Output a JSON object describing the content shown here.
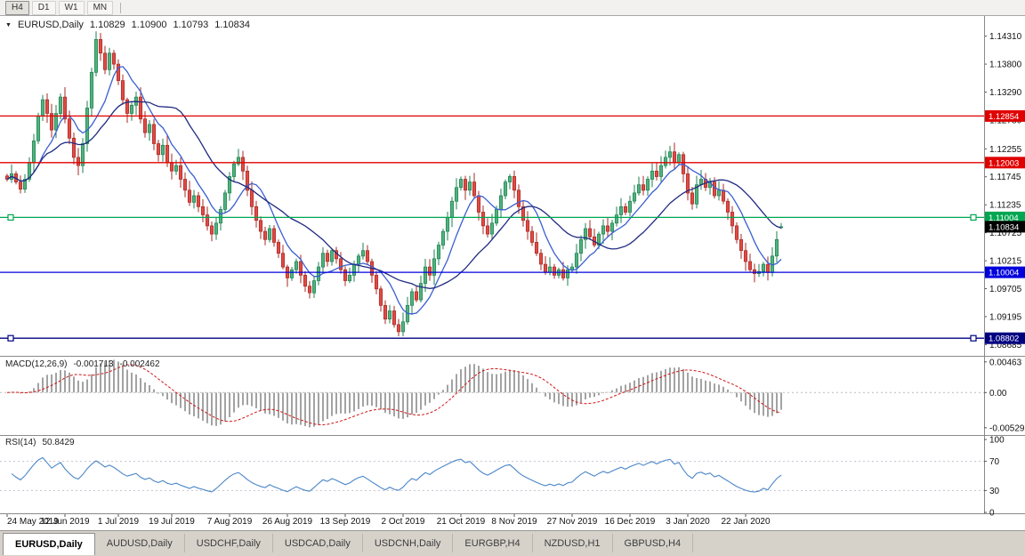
{
  "toolbar": {
    "buttons": [
      "H4",
      "D1",
      "W1",
      "MN"
    ],
    "active_button": "H4"
  },
  "chart_header": {
    "dropdown_icon": "▼",
    "symbol": "EURUSD,Daily",
    "open": "1.10829",
    "high": "1.10900",
    "low": "1.10793",
    "close": "1.10834"
  },
  "price_axis": {
    "ticks": [
      "1.14310",
      "1.13800",
      "1.13290",
      "1.12780",
      "1.12255",
      "1.11745",
      "1.11235",
      "1.10725",
      "1.10215",
      "1.09705",
      "1.09195",
      "1.08685"
    ]
  },
  "levels": [
    {
      "label": "1.12854",
      "price": 1.12854,
      "color": "#e00000",
      "handles": false
    },
    {
      "label": "1.12003",
      "price": 1.12003,
      "color": "#e00000",
      "handles": false
    },
    {
      "label": "1.11004",
      "price": 1.11004,
      "color": "#00a651",
      "handles": true
    },
    {
      "label": "1.10004",
      "price": 1.10004,
      "color": "#0000dd",
      "handles": false
    },
    {
      "label": "1.08802",
      "price": 1.08802,
      "color": "#000080",
      "handles": true
    }
  ],
  "current_price": {
    "label": "1.10834",
    "price": 1.10834,
    "badge_color": "#000000"
  },
  "macd_panel": {
    "title": "MACD(12,26,9)",
    "main_value": "-0.001713",
    "signal_value": "-0.002462",
    "axis": [
      {
        "text": "0.00463",
        "v": 0.00463
      },
      {
        "text": "0.00",
        "v": 0
      },
      {
        "text": "-0.005299",
        "v": -0.005299
      }
    ]
  },
  "rsi_panel": {
    "title": "RSI(14)",
    "value": "50.8429",
    "axis": [
      {
        "text": "100",
        "v": 100
      },
      {
        "text": "70",
        "v": 70
      },
      {
        "text": "30",
        "v": 30
      },
      {
        "text": "0",
        "v": 0
      }
    ],
    "level_lines": [
      70,
      30
    ]
  },
  "time_axis": {
    "labels": [
      "24 May 2019",
      "12 Jun 2019",
      "1 Jul 2019",
      "19 Jul 2019",
      "7 Aug 2019",
      "26 Aug 2019",
      "13 Sep 2019",
      "2 Oct 2019",
      "21 Oct 2019",
      "8 Nov 2019",
      "27 Nov 2019",
      "16 Dec 2019",
      "3 Jan 2020",
      "22 Jan 2020"
    ],
    "indices": [
      0,
      13,
      25,
      37,
      50,
      63,
      76,
      89,
      102,
      114,
      127,
      140,
      153,
      166
    ]
  },
  "bottom_tabs": {
    "active": "EURUSD,Daily",
    "tabs": [
      "EURUSD,Daily",
      "AUDUSD,Daily",
      "USDCHF,Daily",
      "USDCAD,Daily",
      "USDCNH,Daily",
      "EURGBP,H4",
      "NZDUSD,H1",
      "GBPUSD,H4"
    ]
  },
  "colors": {
    "candle_up": "#51b27e",
    "candle_up_border": "#1e8152",
    "candle_down": "#e04a45",
    "candle_down_border": "#a62b26",
    "ma_fast": "#3a5fd0",
    "ma_slow": "#202a80",
    "macd_hist": "#a3a3a3",
    "macd_signal": "#d01515",
    "rsi_line": "#4a86c8",
    "panel_border": "#8a8a8a"
  },
  "chart_data": {
    "type": "candlestick",
    "symbol": "EURUSD",
    "timeframe": "Daily",
    "title": "EURUSD,Daily",
    "current_ohlc": {
      "open": 1.10829,
      "high": 1.109,
      "low": 1.10793,
      "close": 1.10834
    },
    "ylim": [
      1.0848,
      1.1458
    ],
    "horizontal_levels": [
      1.12854,
      1.12003,
      1.11004,
      1.10004,
      1.08802
    ],
    "x_tick_labels": [
      "24 May 2019",
      "12 Jun 2019",
      "1 Jul 2019",
      "19 Jul 2019",
      "7 Aug 2019",
      "26 Aug 2019",
      "13 Sep 2019",
      "2 Oct 2019",
      "21 Oct 2019",
      "8 Nov 2019",
      "27 Nov 2019",
      "16 Dec 2019",
      "3 Jan 2020",
      "22 Jan 2020"
    ],
    "x_tick_candle_indices": [
      0,
      13,
      25,
      37,
      50,
      63,
      76,
      89,
      102,
      114,
      127,
      140,
      153,
      166
    ],
    "moving_averages": [
      {
        "period": 8
      },
      {
        "period": 21
      }
    ],
    "indicators": {
      "macd": {
        "fast": 12,
        "slow": 26,
        "signal": 9,
        "current_main": -0.001713,
        "current_signal": -0.002462,
        "scale_max": 0.00463,
        "scale_min": -0.005299
      },
      "rsi": {
        "period": 14,
        "current": 50.8429,
        "levels": [
          70,
          30
        ],
        "range": [
          0,
          100
        ]
      }
    },
    "closes": [
      1.117,
      1.118,
      1.1165,
      1.1152,
      1.117,
      1.12,
      1.124,
      1.1285,
      1.1315,
      1.129,
      1.126,
      1.129,
      1.132,
      1.128,
      1.1245,
      1.121,
      1.1195,
      1.1235,
      1.13,
      1.1365,
      1.1425,
      1.14,
      1.137,
      1.14,
      1.138,
      1.135,
      1.1315,
      1.129,
      1.1305,
      1.132,
      1.128,
      1.1255,
      1.127,
      1.1235,
      1.1215,
      1.1232,
      1.12,
      1.1185,
      1.1195,
      1.117,
      1.115,
      1.1128,
      1.114,
      1.112,
      1.1105,
      1.1085,
      1.107,
      1.109,
      1.1115,
      1.1145,
      1.1175,
      1.1198,
      1.121,
      1.1185,
      1.115,
      1.112,
      1.1095,
      1.1075,
      1.106,
      1.108,
      1.1055,
      1.1035,
      1.101,
      1.099,
      1.1005,
      1.102,
      1.0995,
      1.0975,
      1.0963,
      1.0985,
      1.101,
      1.1035,
      1.102,
      1.104,
      1.1025,
      1.1005,
      1.0985,
      1.0995,
      1.1015,
      1.103,
      1.104,
      1.102,
      1.0995,
      1.097,
      1.094,
      1.0915,
      1.093,
      1.0905,
      1.0892,
      1.091,
      1.094,
      1.0965,
      1.095,
      1.098,
      1.101,
      1.0995,
      1.1025,
      1.105,
      1.1075,
      1.11,
      1.113,
      1.1155,
      1.117,
      1.115,
      1.1165,
      1.114,
      1.111,
      1.1085,
      1.107,
      1.109,
      1.1115,
      1.114,
      1.1165,
      1.1175,
      1.115,
      1.112,
      1.1095,
      1.1075,
      1.1055,
      1.1035,
      1.1015,
      1.1,
      1.101,
      1.0995,
      1.1005,
      1.099,
      1.1005,
      1.101,
      1.1035,
      1.106,
      1.108,
      1.1065,
      1.105,
      1.107,
      1.1085,
      1.1075,
      1.109,
      1.1105,
      1.112,
      1.111,
      1.113,
      1.1145,
      1.116,
      1.115,
      1.117,
      1.1185,
      1.1175,
      1.1195,
      1.121,
      1.122,
      1.12,
      1.1215,
      1.118,
      1.1145,
      1.1125,
      1.116,
      1.117,
      1.1155,
      1.1165,
      1.114,
      1.115,
      1.113,
      1.111,
      1.1085,
      1.106,
      1.104,
      1.102,
      1.1005,
      1.0998,
      1.1002,
      1.1015,
      1.1,
      1.103,
      1.106,
      1.10834
    ]
  }
}
